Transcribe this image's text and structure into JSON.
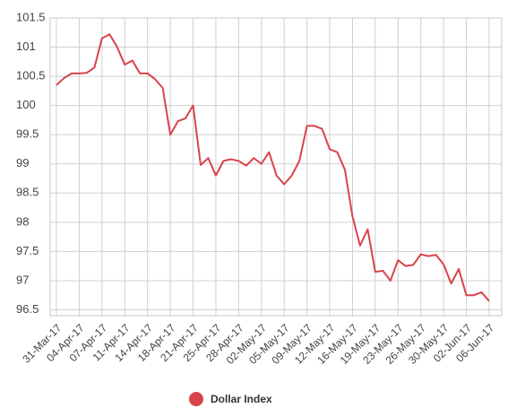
{
  "chart_data": {
    "type": "line",
    "categories": [
      "31-Mar-17",
      null,
      null,
      "04-Apr-17",
      null,
      null,
      "07-Apr-17",
      null,
      null,
      "11-Apr-17",
      null,
      null,
      "14-Apr-17",
      null,
      null,
      "18-Apr-17",
      null,
      null,
      "21-Apr-17",
      null,
      null,
      "25-Apr-17",
      null,
      null,
      "28-Apr-17",
      null,
      null,
      "02-May-17",
      null,
      null,
      "05-May-17",
      null,
      null,
      "09-May-17",
      null,
      null,
      "12-May-17",
      null,
      null,
      "16-May-17",
      null,
      null,
      "19-May-17",
      null,
      null,
      "23-May-17",
      null,
      null,
      "26-May-17",
      null,
      null,
      "30-May-17",
      null,
      null,
      "02-Jun-17",
      null,
      null,
      "06-Jun-17"
    ],
    "series": [
      {
        "name": "Dollar Index",
        "color": "#d9434b",
        "values": [
          100.35,
          100.47,
          100.55,
          100.55,
          100.56,
          100.65,
          101.15,
          101.22,
          101.0,
          100.7,
          100.77,
          100.55,
          100.55,
          100.45,
          100.3,
          99.5,
          99.73,
          99.78,
          100.0,
          98.98,
          99.1,
          98.8,
          99.05,
          99.08,
          99.05,
          98.97,
          99.1,
          99.0,
          99.2,
          98.8,
          98.65,
          98.8,
          99.05,
          99.65,
          99.65,
          99.6,
          99.25,
          99.2,
          98.9,
          98.1,
          97.6,
          97.88,
          97.15,
          97.17,
          97.0,
          97.35,
          97.25,
          97.27,
          97.45,
          97.42,
          97.44,
          97.28,
          96.95,
          97.2,
          96.75,
          96.75,
          96.8,
          96.65
        ]
      }
    ],
    "ylim": [
      96.4,
      101.5
    ],
    "yticks": [
      96.5,
      97,
      97.5,
      98,
      98.5,
      99,
      99.5,
      100,
      100.5,
      101,
      101.5
    ],
    "grid": true,
    "legend": "bottom"
  }
}
